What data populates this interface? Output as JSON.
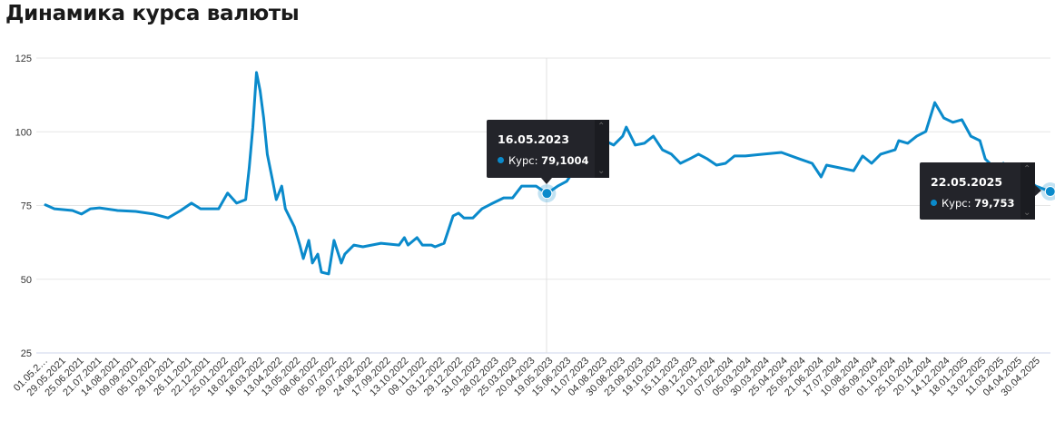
{
  "title": "Динамика курса валюты",
  "colors": {
    "line": "#0a8acb",
    "grid": "#e6e6e6",
    "tooltip_bg": "#23242a"
  },
  "tooltips": [
    {
      "date": "16.05.2023",
      "label": "Курс:",
      "value": "79,1004"
    },
    {
      "date": "22.05.2025",
      "label": "Курс:",
      "value": "79,753"
    }
  ],
  "chart_data": {
    "type": "line",
    "title": "Динамика курса валюты",
    "xlabel": "",
    "ylabel": "",
    "ylim": [
      25,
      125
    ],
    "yticks": [
      "25",
      "50",
      "75",
      "100",
      "125"
    ],
    "grid": true,
    "categories": [
      "01.05.2…",
      "29.05.2021",
      "25.06.2021",
      "21.07.2021",
      "14.08.2021",
      "09.09.2021",
      "05.10.2021",
      "29.10.2021",
      "26.11.2021",
      "22.12.2021",
      "25.01.2022",
      "18.02.2022",
      "18.03.2022",
      "13.04.2022",
      "13.05.2022",
      "08.06.2022",
      "05.07.2022",
      "29.07.2022",
      "24.08.2022",
      "17.09.2022",
      "13.10.2022",
      "09.11.2022",
      "03.12.2022",
      "29.12.2022",
      "31.01.2023",
      "28.02.2023",
      "25.03.2023",
      "20.04.2023",
      "19.05.2023",
      "15.06.2023",
      "11.07.2023",
      "04.08.2023",
      "30.08.2023",
      "23.09.2023",
      "19.10.2023",
      "15.11.2023",
      "09.12.2023",
      "12.01.2024",
      "07.02.2024",
      "05.03.2024",
      "30.03.2024",
      "25.04.2024",
      "25.05.2024",
      "21.06.2024",
      "17.07.2024",
      "10.08.2024",
      "05.09.2024",
      "01.10.2024",
      "25.10.2024",
      "20.11.2024",
      "14.12.2024",
      "18.01.2025",
      "13.02.2025",
      "11.03.2025",
      "04.04.2025",
      "30.04.2025"
    ],
    "series": [
      {
        "name": "Курс",
        "points": [
          [
            0,
            75.2
          ],
          [
            0.5,
            73.9
          ],
          [
            1.5,
            73.3
          ],
          [
            2.0,
            72.1
          ],
          [
            2.5,
            73.9
          ],
          [
            3.0,
            74.2
          ],
          [
            4.0,
            73.3
          ],
          [
            5.0,
            73.0
          ],
          [
            6.0,
            72.1
          ],
          [
            6.8,
            70.8
          ],
          [
            7.5,
            73.3
          ],
          [
            8.1,
            75.8
          ],
          [
            8.6,
            73.9
          ],
          [
            9.6,
            73.9
          ],
          [
            10.1,
            79.2
          ],
          [
            10.6,
            75.8
          ],
          [
            11.1,
            77.0
          ],
          [
            11.3,
            87.8
          ],
          [
            11.5,
            101.6
          ],
          [
            11.7,
            120.1
          ],
          [
            11.9,
            113.9
          ],
          [
            12.1,
            104.7
          ],
          [
            12.3,
            92.4
          ],
          [
            12.6,
            83.2
          ],
          [
            12.8,
            77.0
          ],
          [
            13.1,
            81.6
          ],
          [
            13.3,
            73.9
          ],
          [
            13.8,
            67.8
          ],
          [
            14.1,
            61.6
          ],
          [
            14.3,
            57.0
          ],
          [
            14.6,
            63.2
          ],
          [
            14.8,
            55.5
          ],
          [
            15.1,
            58.5
          ],
          [
            15.3,
            52.4
          ],
          [
            15.7,
            51.8
          ],
          [
            16.0,
            63.2
          ],
          [
            16.4,
            55.5
          ],
          [
            16.6,
            58.5
          ],
          [
            17.1,
            61.6
          ],
          [
            17.6,
            61.0
          ],
          [
            18.6,
            62.2
          ],
          [
            19.6,
            61.6
          ],
          [
            19.9,
            64.1
          ],
          [
            20.1,
            61.6
          ],
          [
            20.6,
            64.1
          ],
          [
            20.9,
            61.6
          ],
          [
            21.4,
            61.6
          ],
          [
            21.6,
            61.0
          ],
          [
            22.1,
            62.2
          ],
          [
            22.6,
            71.5
          ],
          [
            22.9,
            72.4
          ],
          [
            23.2,
            70.8
          ],
          [
            23.7,
            70.8
          ],
          [
            24.2,
            73.9
          ],
          [
            24.7,
            75.5
          ],
          [
            25.4,
            77.6
          ],
          [
            25.9,
            77.6
          ],
          [
            26.4,
            81.6
          ],
          [
            27.2,
            81.6
          ],
          [
            27.8,
            79.1
          ],
          [
            28.4,
            81.6
          ],
          [
            28.9,
            83.2
          ],
          [
            29.4,
            87.8
          ],
          [
            29.9,
            97.0
          ],
          [
            30.4,
            90.8
          ],
          [
            31.0,
            97.0
          ],
          [
            31.5,
            95.5
          ],
          [
            32.0,
            98.5
          ],
          [
            32.2,
            101.6
          ],
          [
            32.7,
            95.5
          ],
          [
            33.2,
            96.1
          ],
          [
            33.7,
            98.5
          ],
          [
            34.2,
            93.9
          ],
          [
            34.7,
            92.4
          ],
          [
            35.2,
            89.3
          ],
          [
            35.7,
            90.8
          ],
          [
            36.2,
            92.4
          ],
          [
            36.7,
            90.8
          ],
          [
            37.2,
            88.7
          ],
          [
            37.7,
            89.3
          ],
          [
            38.2,
            91.8
          ],
          [
            38.8,
            91.8
          ],
          [
            39.8,
            92.4
          ],
          [
            40.8,
            93.0
          ],
          [
            41.8,
            90.8
          ],
          [
            42.5,
            89.3
          ],
          [
            43.0,
            84.7
          ],
          [
            43.3,
            88.7
          ],
          [
            44.0,
            87.8
          ],
          [
            44.8,
            86.8
          ],
          [
            45.3,
            91.8
          ],
          [
            45.8,
            89.3
          ],
          [
            46.3,
            92.4
          ],
          [
            47.1,
            93.9
          ],
          [
            47.3,
            97.0
          ],
          [
            47.8,
            96.1
          ],
          [
            48.3,
            98.5
          ],
          [
            48.8,
            100.1
          ],
          [
            49.3,
            109.9
          ],
          [
            49.8,
            104.7
          ],
          [
            50.3,
            103.2
          ],
          [
            50.8,
            104.1
          ],
          [
            51.3,
            98.5
          ],
          [
            51.8,
            97.0
          ],
          [
            52.1,
            90.8
          ],
          [
            52.6,
            87.8
          ],
          [
            53.1,
            89.3
          ],
          [
            53.3,
            84.7
          ],
          [
            53.8,
            83.2
          ],
          [
            54.4,
            83.8
          ],
          [
            54.9,
            81.6
          ],
          [
            55.7,
            79.75
          ]
        ]
      }
    ],
    "highlighted_points": [
      [
        27.8,
        79.1004
      ],
      [
        55.7,
        79.753
      ]
    ]
  }
}
